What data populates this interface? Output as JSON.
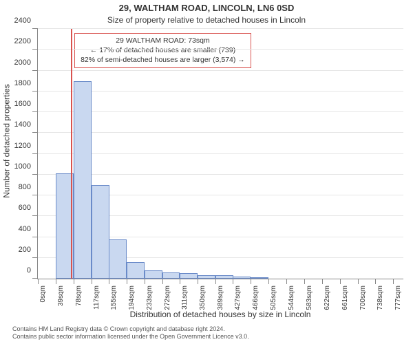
{
  "titles": {
    "line1": "29, WALTHAM ROAD, LINCOLN, LN6 0SD",
    "line2": "Size of property relative to detached houses in Lincoln"
  },
  "axis": {
    "ylabel": "Number of detached properties",
    "xlabel": "Distribution of detached houses by size in Lincoln"
  },
  "annotation": {
    "line1": "29 WALTHAM ROAD: 73sqm",
    "line2": "← 17% of detached houses are smaller (739)",
    "line3": "82% of semi-detached houses are larger (3,574) →",
    "border_color": "#d9534f",
    "left_pct": 10
  },
  "marker": {
    "x_value": 73,
    "color": "#d9534f"
  },
  "colors": {
    "bar_fill": "#c9d8f0",
    "bar_border": "#6a8bc9",
    "grid": "#e6e6e6",
    "text": "#333333"
  },
  "chart": {
    "type": "histogram",
    "x_min": 0,
    "x_max": 800,
    "y_min": 0,
    "y_max": 2400,
    "bar_width_units": 39,
    "y_ticks": [
      0,
      200,
      400,
      600,
      800,
      1000,
      1200,
      1400,
      1600,
      1800,
      2000,
      2200,
      2400
    ],
    "x_tick_values": [
      0,
      39,
      78,
      117,
      155,
      194,
      233,
      272,
      311,
      350,
      389,
      427,
      466,
      505,
      544,
      583,
      622,
      661,
      700,
      738,
      777
    ],
    "x_tick_labels": [
      "0sqm",
      "39sqm",
      "78sqm",
      "117sqm",
      "155sqm",
      "194sqm",
      "233sqm",
      "272sqm",
      "311sqm",
      "350sqm",
      "389sqm",
      "427sqm",
      "466sqm",
      "505sqm",
      "544sqm",
      "583sqm",
      "622sqm",
      "661sqm",
      "700sqm",
      "738sqm",
      "777sqm"
    ],
    "bars": [
      {
        "x": 0,
        "y": 0
      },
      {
        "x": 39,
        "y": 1010
      },
      {
        "x": 78,
        "y": 1900
      },
      {
        "x": 117,
        "y": 900
      },
      {
        "x": 155,
        "y": 380
      },
      {
        "x": 194,
        "y": 160
      },
      {
        "x": 233,
        "y": 80
      },
      {
        "x": 272,
        "y": 60
      },
      {
        "x": 311,
        "y": 50
      },
      {
        "x": 350,
        "y": 30
      },
      {
        "x": 389,
        "y": 30
      },
      {
        "x": 427,
        "y": 20
      },
      {
        "x": 466,
        "y": 10
      },
      {
        "x": 505,
        "y": 0
      },
      {
        "x": 544,
        "y": 0
      },
      {
        "x": 583,
        "y": 0
      },
      {
        "x": 622,
        "y": 0
      },
      {
        "x": 661,
        "y": 0
      },
      {
        "x": 700,
        "y": 0
      },
      {
        "x": 738,
        "y": 0
      }
    ]
  },
  "footnotes": {
    "line1": "Contains HM Land Registry data © Crown copyright and database right 2024.",
    "line2": "Contains public sector information licensed under the Open Government Licence v3.0."
  }
}
